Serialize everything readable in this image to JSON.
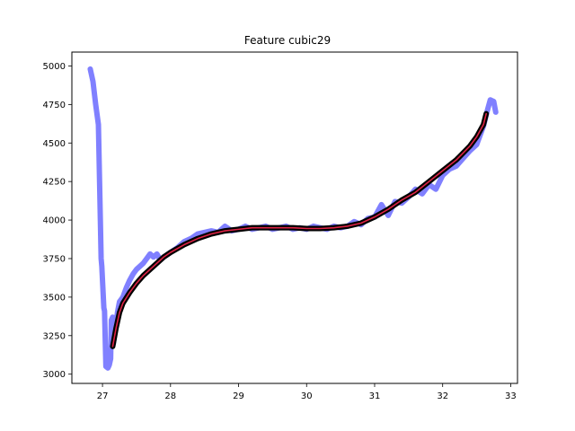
{
  "chart_data": {
    "type": "line",
    "title": "Feature cubic29",
    "xlabel": "",
    "ylabel": "",
    "xlim": [
      26.55,
      33.1
    ],
    "ylim": [
      2940,
      5090
    ],
    "grid": false,
    "xticks": [
      27,
      28,
      29,
      30,
      31,
      32,
      33
    ],
    "yticks": [
      3000,
      3250,
      3500,
      3750,
      4000,
      4250,
      4500,
      4750,
      5000
    ],
    "series": [
      {
        "name": "",
        "color": "#8080ff",
        "style": "thick-line",
        "x": [
          26.82,
          26.86,
          26.9,
          26.94,
          26.98,
          26.99,
          27.02,
          27.03,
          27.05,
          27.08,
          27.1,
          27.12,
          27.13,
          27.15,
          27.16,
          27.18,
          27.19,
          27.22,
          27.25,
          27.3,
          27.35,
          27.4,
          27.45,
          27.5,
          27.6,
          27.7,
          27.75,
          27.8,
          27.85,
          27.9,
          28.0,
          28.1,
          28.2,
          28.3,
          28.4,
          28.5,
          28.6,
          28.7,
          28.8,
          28.9,
          29.0,
          29.1,
          29.2,
          29.3,
          29.4,
          29.5,
          29.6,
          29.7,
          29.8,
          29.9,
          30.0,
          30.1,
          30.2,
          30.3,
          30.4,
          30.5,
          30.6,
          30.7,
          30.8,
          30.9,
          31.0,
          31.1,
          31.2,
          31.3,
          31.4,
          31.5,
          31.6,
          31.7,
          31.8,
          31.9,
          32.0,
          32.1,
          32.2,
          32.3,
          32.4,
          32.5,
          32.6,
          32.65,
          32.7,
          32.75,
          32.78
        ],
        "y": [
          4980,
          4900,
          4750,
          4620,
          3750,
          3700,
          3430,
          3410,
          3050,
          3040,
          3060,
          3100,
          3350,
          3370,
          3200,
          3260,
          3290,
          3400,
          3470,
          3500,
          3560,
          3610,
          3650,
          3680,
          3720,
          3780,
          3760,
          3780,
          3740,
          3760,
          3790,
          3820,
          3860,
          3880,
          3910,
          3920,
          3930,
          3920,
          3960,
          3930,
          3940,
          3960,
          3940,
          3950,
          3960,
          3940,
          3950,
          3960,
          3940,
          3950,
          3940,
          3960,
          3950,
          3940,
          3960,
          3950,
          3960,
          3990,
          3970,
          4010,
          4020,
          4100,
          4030,
          4120,
          4110,
          4150,
          4200,
          4170,
          4230,
          4200,
          4290,
          4330,
          4350,
          4400,
          4450,
          4490,
          4610,
          4700,
          4780,
          4770,
          4700
        ]
      },
      {
        "name": "",
        "color": "#000000",
        "style": "thick-line",
        "x": [
          27.15,
          27.2,
          27.25,
          27.3,
          27.4,
          27.5,
          27.6,
          27.7,
          27.8,
          27.9,
          28.0,
          28.2,
          28.4,
          28.6,
          28.8,
          29.0,
          29.2,
          29.4,
          29.6,
          29.8,
          30.0,
          30.2,
          30.4,
          30.6,
          30.8,
          31.0,
          31.2,
          31.4,
          31.6,
          31.8,
          32.0,
          32.2,
          32.4,
          32.5,
          32.6,
          32.64
        ],
        "y": [
          3180,
          3300,
          3400,
          3460,
          3530,
          3590,
          3640,
          3680,
          3720,
          3760,
          3790,
          3840,
          3880,
          3910,
          3930,
          3940,
          3950,
          3950,
          3950,
          3950,
          3945,
          3945,
          3950,
          3960,
          3980,
          4020,
          4070,
          4130,
          4180,
          4250,
          4320,
          4390,
          4480,
          4540,
          4620,
          4690
        ]
      },
      {
        "name": "",
        "color": "#dd2244",
        "style": "thin-line",
        "x": [
          27.15,
          27.2,
          27.25,
          27.3,
          27.4,
          27.5,
          27.6,
          27.7,
          27.8,
          27.9,
          28.0,
          28.2,
          28.4,
          28.6,
          28.8,
          29.0,
          29.2,
          29.4,
          29.6,
          29.8,
          30.0,
          30.2,
          30.4,
          30.6,
          30.8,
          31.0,
          31.2,
          31.4,
          31.6,
          31.8,
          32.0,
          32.2,
          32.4,
          32.5,
          32.6,
          32.64
        ],
        "y": [
          3180,
          3300,
          3400,
          3460,
          3530,
          3590,
          3640,
          3680,
          3720,
          3760,
          3790,
          3840,
          3880,
          3910,
          3930,
          3940,
          3950,
          3950,
          3950,
          3950,
          3945,
          3945,
          3950,
          3960,
          3980,
          4020,
          4070,
          4130,
          4180,
          4250,
          4320,
          4390,
          4480,
          4540,
          4620,
          4690
        ]
      }
    ]
  }
}
